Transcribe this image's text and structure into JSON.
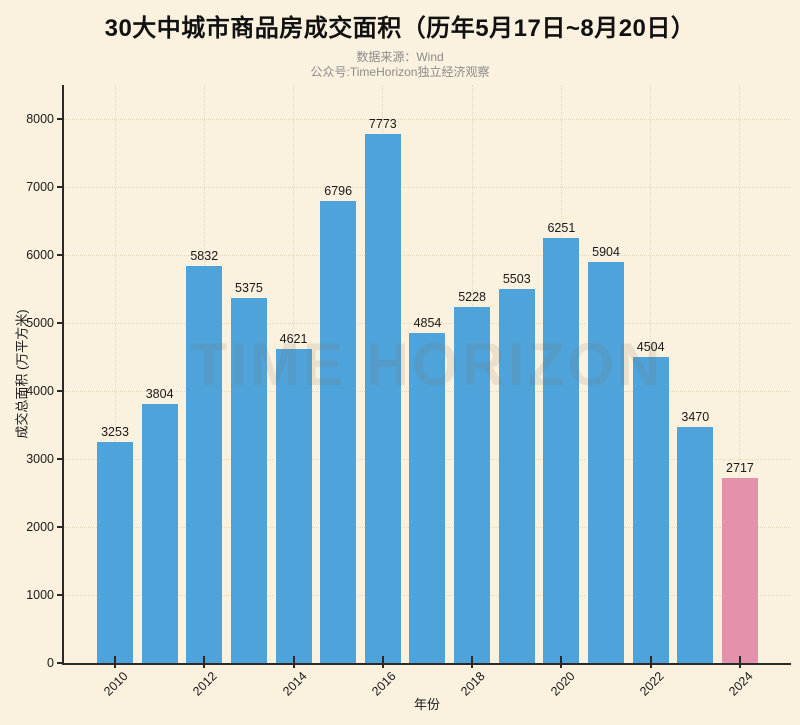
{
  "title": "30大中城市商品房成交面积（历年5月17日~8月20日）",
  "subtitle_line1": "数据来源：Wind",
  "subtitle_line2": "公众号:TimeHorizon独立经济观察",
  "watermark": "TIME HORIZON",
  "colors": {
    "background": "#FAF1DE",
    "bar": "#4FA3DB",
    "bar_highlight": "#E492AB",
    "axis": "#2A2A2A",
    "grid": "#E3D9BD",
    "title_text": "#111111",
    "subtitle_text": "#8C8C8C",
    "tick_text": "#1A1A1A"
  },
  "chart_data": {
    "type": "bar",
    "title": "30大中城市商品房成交面积（历年5月17日~8月20日）",
    "subtitle": [
      "数据来源：Wind",
      "公众号:TimeHorizon独立经济观察"
    ],
    "xlabel": "年份",
    "ylabel": "成交总面积 (万平方米)",
    "categories": [
      2010,
      2011,
      2012,
      2013,
      2014,
      2015,
      2016,
      2017,
      2018,
      2019,
      2020,
      2021,
      2022,
      2023,
      2024
    ],
    "values": [
      3253,
      3804,
      5832,
      5375,
      4621,
      6796,
      7773,
      4854,
      5228,
      5503,
      6251,
      5904,
      4504,
      3470,
      2717
    ],
    "highlight_category": 2024,
    "bar_value_labels": true,
    "ylim": [
      0,
      8500
    ],
    "yticks": [
      0,
      1000,
      2000,
      3000,
      4000,
      5000,
      6000,
      7000,
      8000
    ],
    "xtick_labels": [
      "2010",
      "2012",
      "2014",
      "2016",
      "2018",
      "2020",
      "2022",
      "2024"
    ],
    "grid": "dotted",
    "legend": "none",
    "watermark": "TIME HORIZON"
  }
}
